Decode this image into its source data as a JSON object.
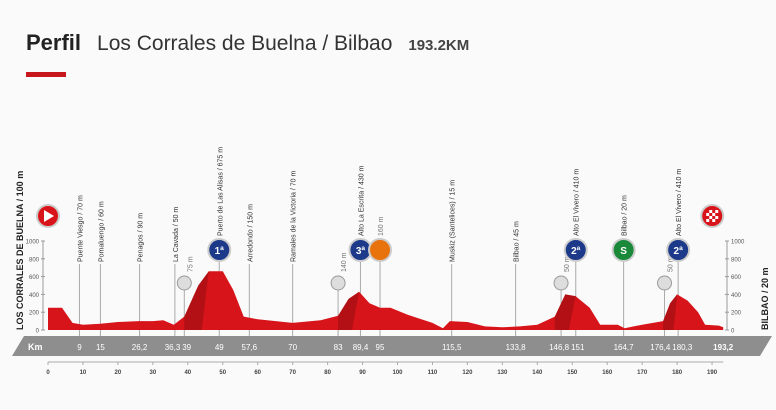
{
  "header": {
    "title": "Perfil",
    "stage": "Los Corrales de Buelna / Bilbao",
    "distance": "193.2KM"
  },
  "start_label": "LOS CORRALES DE BUELNA / 100 m",
  "finish_label": "BILBAO / 20 m",
  "colors": {
    "accent": "#c8161d",
    "profile": "#d8141b",
    "profile_dark": "#9a0e12",
    "axis": "#8e8e8e",
    "cat": "#1d3a8a",
    "sprint": "#1a8a3a",
    "feed": "#e8720c"
  },
  "chart_data": {
    "type": "area",
    "xlabel": "Km",
    "ylabel": "",
    "xlim": [
      0,
      193.2
    ],
    "ylim": [
      0,
      1000
    ],
    "x_ticks": [
      "0",
      "10",
      "20",
      "30",
      "40",
      "50",
      "60",
      "70",
      "80",
      "90",
      "100",
      "110",
      "120",
      "130",
      "140",
      "150",
      "160",
      "170",
      "180",
      "190"
    ],
    "y_ticks": [
      "0",
      "200",
      "400",
      "600",
      "800",
      "1000"
    ],
    "profile": [
      [
        0,
        250
      ],
      [
        4,
        250
      ],
      [
        7,
        80
      ],
      [
        10,
        60
      ],
      [
        15,
        70
      ],
      [
        20,
        90
      ],
      [
        26,
        100
      ],
      [
        30,
        100
      ],
      [
        33,
        110
      ],
      [
        36,
        60
      ],
      [
        39,
        150
      ],
      [
        43,
        500
      ],
      [
        46,
        660
      ],
      [
        50,
        660
      ],
      [
        53,
        450
      ],
      [
        56,
        150
      ],
      [
        60,
        120
      ],
      [
        70,
        80
      ],
      [
        78,
        110
      ],
      [
        83,
        160
      ],
      [
        86,
        350
      ],
      [
        89,
        430
      ],
      [
        92,
        300
      ],
      [
        95,
        250
      ],
      [
        98,
        250
      ],
      [
        103,
        170
      ],
      [
        110,
        80
      ],
      [
        113,
        20
      ],
      [
        115,
        100
      ],
      [
        120,
        90
      ],
      [
        125,
        40
      ],
      [
        130,
        30
      ],
      [
        135,
        40
      ],
      [
        140,
        60
      ],
      [
        145,
        150
      ],
      [
        148,
        400
      ],
      [
        151,
        380
      ],
      [
        155,
        250
      ],
      [
        158,
        60
      ],
      [
        163,
        60
      ],
      [
        165,
        20
      ],
      [
        170,
        60
      ],
      [
        176,
        100
      ],
      [
        178,
        300
      ],
      [
        180,
        400
      ],
      [
        183,
        330
      ],
      [
        186,
        200
      ],
      [
        188,
        60
      ],
      [
        192,
        50
      ],
      [
        193.2,
        30
      ]
    ],
    "points": [
      {
        "km": 9,
        "km_label": "9",
        "name": "Puente Viesgo / 70 m",
        "type": "town"
      },
      {
        "km": 15,
        "km_label": "15",
        "name": "Pomaluengo / 60 m",
        "type": "town"
      },
      {
        "km": 26.2,
        "km_label": "26,2",
        "name": "Penagos / 90 m",
        "type": "town"
      },
      {
        "km": 36.3,
        "km_label": "36,3",
        "name": "La Cavada / 50 m",
        "type": "town"
      },
      {
        "km": 39,
        "km_label": "39",
        "name": "75 m",
        "type": "climbstart"
      },
      {
        "km": 49,
        "km_label": "49",
        "name": "Puerto de Las Alisas / 675 m",
        "type": "cat",
        "cat": "1ª"
      },
      {
        "km": 57.6,
        "km_label": "57,6",
        "name": "Arredondo / 150 m",
        "type": "town"
      },
      {
        "km": 70,
        "km_label": "70",
        "name": "Ramales de la Victoria / 70 m",
        "type": "town"
      },
      {
        "km": 83,
        "km_label": "83",
        "name": "140 m",
        "type": "climbstart"
      },
      {
        "km": 89.4,
        "km_label": "89,4",
        "name": "Alto La Escrita / 430 m",
        "type": "cat",
        "cat": "3ª"
      },
      {
        "km": 95,
        "km_label": "95",
        "name": "160 m",
        "type": "feed"
      },
      {
        "km": 115.5,
        "km_label": "115,5",
        "name": "Muskiz (Santelices) / 15 m",
        "type": "town"
      },
      {
        "km": 133.8,
        "km_label": "133,8",
        "name": "Bilbao / 45 m",
        "type": "town"
      },
      {
        "km": 146.8,
        "km_label": "146,8",
        "name": "50 m",
        "type": "climbstart"
      },
      {
        "km": 151,
        "km_label": "151",
        "name": "Alto El Vivero / 410 m",
        "type": "cat",
        "cat": "2ª"
      },
      {
        "km": 164.7,
        "km_label": "164,7",
        "name": "Bilbao / 20 m",
        "type": "sprint",
        "cat": "S"
      },
      {
        "km": 176.4,
        "km_label": "176,4",
        "name": "50 m",
        "type": "climbstart"
      },
      {
        "km": 180.3,
        "km_label": "180,3",
        "name": "Alto El Vivero / 410 m",
        "type": "cat",
        "cat": "2ª"
      },
      {
        "km": 193.2,
        "km_label": "193,2",
        "name": "",
        "type": "finish"
      }
    ]
  }
}
